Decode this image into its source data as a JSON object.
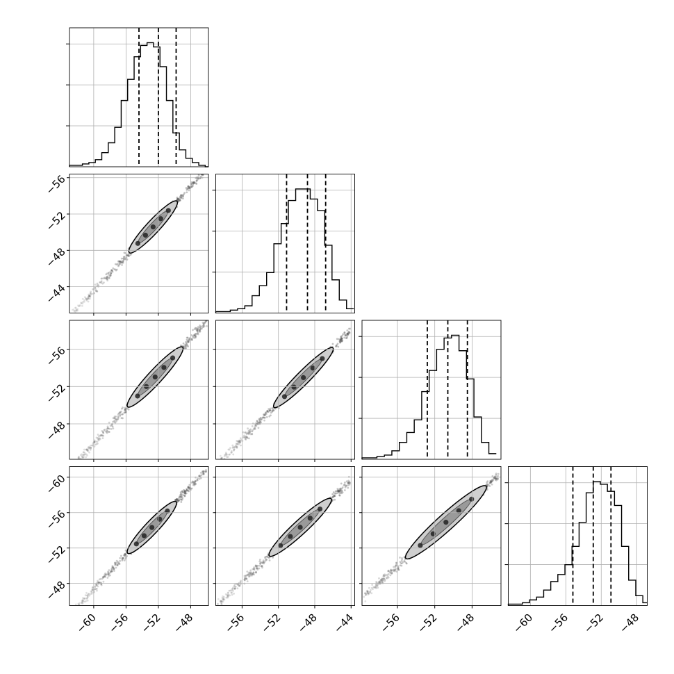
{
  "figure": {
    "type": "corner-plot",
    "axis_ranges": {
      "p0": [
        -63,
        -45.8
      ],
      "p1": [
        -58.9,
        -43.6
      ],
      "p2": [
        -59.8,
        -44.9
      ],
      "p3": [
        -62.5,
        -46.8
      ]
    }
  },
  "chart_data": [
    {
      "type": "histogram",
      "name": "hist-p0",
      "param": "p0",
      "bins_x": [
        -63,
        -62.2,
        -61.4,
        -60.6,
        -59.8,
        -59.0,
        -58.2,
        -57.4,
        -56.6,
        -55.8,
        -55.0,
        -54.2,
        -53.4,
        -52.6,
        -51.8,
        -51.0,
        -50.2,
        -49.4,
        -48.6,
        -47.8,
        -47.0,
        -46.2,
        -45.4
      ],
      "counts": [
        1,
        1,
        2,
        3,
        5,
        10,
        17,
        28,
        47,
        62,
        78,
        86,
        88,
        85,
        71,
        47,
        24,
        12,
        6,
        3,
        1,
        0
      ],
      "quantiles": [
        -54.4,
        -52.0,
        -49.8
      ],
      "grid": true
    },
    {
      "type": "histogram",
      "name": "hist-p1",
      "param": "p1",
      "bins_x": [
        -58.9,
        -58.1,
        -57.3,
        -56.5,
        -55.7,
        -54.9,
        -54.1,
        -53.3,
        -52.5,
        -51.7,
        -50.9,
        -50.1,
        -49.3,
        -48.5,
        -47.7,
        -46.9,
        -46.1,
        -45.3,
        -44.5,
        -43.7
      ],
      "counts": [
        1,
        1,
        2,
        3,
        5,
        12,
        19,
        28,
        48,
        62,
        78,
        86,
        86,
        79,
        71,
        47,
        23,
        9,
        3
      ],
      "quantiles": [
        -51.1,
        -48.8,
        -46.8
      ],
      "grid": true
    },
    {
      "type": "histogram",
      "name": "hist-p2",
      "param": "p2",
      "bins_x": [
        -59.8,
        -59.0,
        -58.2,
        -57.4,
        -56.6,
        -55.8,
        -55.0,
        -54.2,
        -53.4,
        -52.6,
        -51.8,
        -51.0,
        -50.2,
        -49.4,
        -48.6,
        -47.8,
        -47.0,
        -46.2,
        -45.4
      ],
      "counts": [
        1,
        1,
        2,
        3,
        6,
        12,
        19,
        28,
        48,
        63,
        78,
        86,
        88,
        77,
        57,
        30,
        12,
        4
      ],
      "quantiles": [
        -52.8,
        -50.6,
        -48.5
      ],
      "grid": true
    },
    {
      "type": "histogram",
      "name": "hist-p3",
      "param": "p3",
      "bins_x": [
        -62.5,
        -61.7,
        -60.9,
        -60.1,
        -59.3,
        -58.5,
        -57.7,
        -56.9,
        -56.1,
        -55.3,
        -54.5,
        -53.7,
        -52.9,
        -52.1,
        -51.3,
        -50.5,
        -49.7,
        -48.9,
        -48.1,
        -47.3,
        -46.5
      ],
      "counts": [
        1,
        1,
        2,
        4,
        6,
        11,
        17,
        22,
        29,
        42,
        59,
        80,
        88,
        86,
        81,
        71,
        42,
        18,
        7,
        2
      ],
      "quantiles": [
        -55.2,
        -52.9,
        -50.9
      ],
      "grid": true
    },
    {
      "type": "scatter-density",
      "name": "joint-p0-p1",
      "x_param": "p0",
      "y_param": "p1",
      "center": [
        -52.0,
        -48.8
      ],
      "slope": 0.96,
      "x_extent": [
        -62.7,
        -46.0
      ],
      "contour_x": [
        -55.6,
        -49.7
      ],
      "contour_width": 0.75
    },
    {
      "type": "scatter-density",
      "name": "joint-p0-p2",
      "x_param": "p0",
      "y_param": "p2",
      "center": [
        -52.0,
        -50.6
      ],
      "slope": 0.94,
      "x_extent": [
        -62.7,
        -46.0
      ],
      "contour_x": [
        -55.8,
        -49.0
      ],
      "contour_width": 0.8
    },
    {
      "type": "scatter-density",
      "name": "joint-p1-p2",
      "x_param": "p1",
      "y_param": "p2",
      "center": [
        -48.8,
        -50.6
      ],
      "slope": 0.98,
      "x_extent": [
        -58.7,
        -44.1
      ],
      "contour_x": [
        -52.5,
        -46.0
      ],
      "contour_width": 0.75
    },
    {
      "type": "scatter-density",
      "name": "joint-p0-p3",
      "x_param": "p0",
      "y_param": "p3",
      "center": [
        -52.0,
        -52.9
      ],
      "slope": 0.97,
      "x_extent": [
        -62.7,
        -46.0
      ],
      "contour_x": [
        -55.8,
        -49.8
      ],
      "contour_width": 0.75
    },
    {
      "type": "scatter-density",
      "name": "joint-p1-p3",
      "x_param": "p1",
      "y_param": "p3",
      "center": [
        -48.8,
        -52.9
      ],
      "slope": 0.95,
      "x_extent": [
        -58.7,
        -44.1
      ],
      "contour_x": [
        -53.0,
        -46.2
      ],
      "contour_width": 0.8
    },
    {
      "type": "scatter-density",
      "name": "joint-p2-p3",
      "x_param": "p2",
      "y_param": "p3",
      "center": [
        -50.6,
        -52.9
      ],
      "slope": 0.95,
      "x_extent": [
        -59.6,
        -45.1
      ],
      "contour_x": [
        -55.1,
        -46.5
      ],
      "contour_width": 0.95
    }
  ],
  "tick_labels": {
    "x_p0": [
      "−60",
      "−56",
      "−52",
      "−48"
    ],
    "x_p1": [
      "−56",
      "−52",
      "−48",
      "−44"
    ],
    "x_p2": [
      "−56",
      "−52",
      "−48"
    ],
    "x_p3": [
      "−60",
      "−56",
      "−52",
      "−48"
    ],
    "y_p1": [
      "−44",
      "−48",
      "−52",
      "−56"
    ],
    "y_p2": [
      "−48",
      "−52",
      "−56"
    ],
    "y_p3": [
      "−48",
      "−52",
      "−56",
      "−60"
    ]
  },
  "tick_values": {
    "p0": [
      -60,
      -56,
      -52,
      -48
    ],
    "p1": [
      -56,
      -52,
      -48,
      -44
    ],
    "p2": [
      -56,
      -52,
      -48
    ],
    "p3": [
      -60,
      -56,
      -52,
      -48
    ]
  }
}
